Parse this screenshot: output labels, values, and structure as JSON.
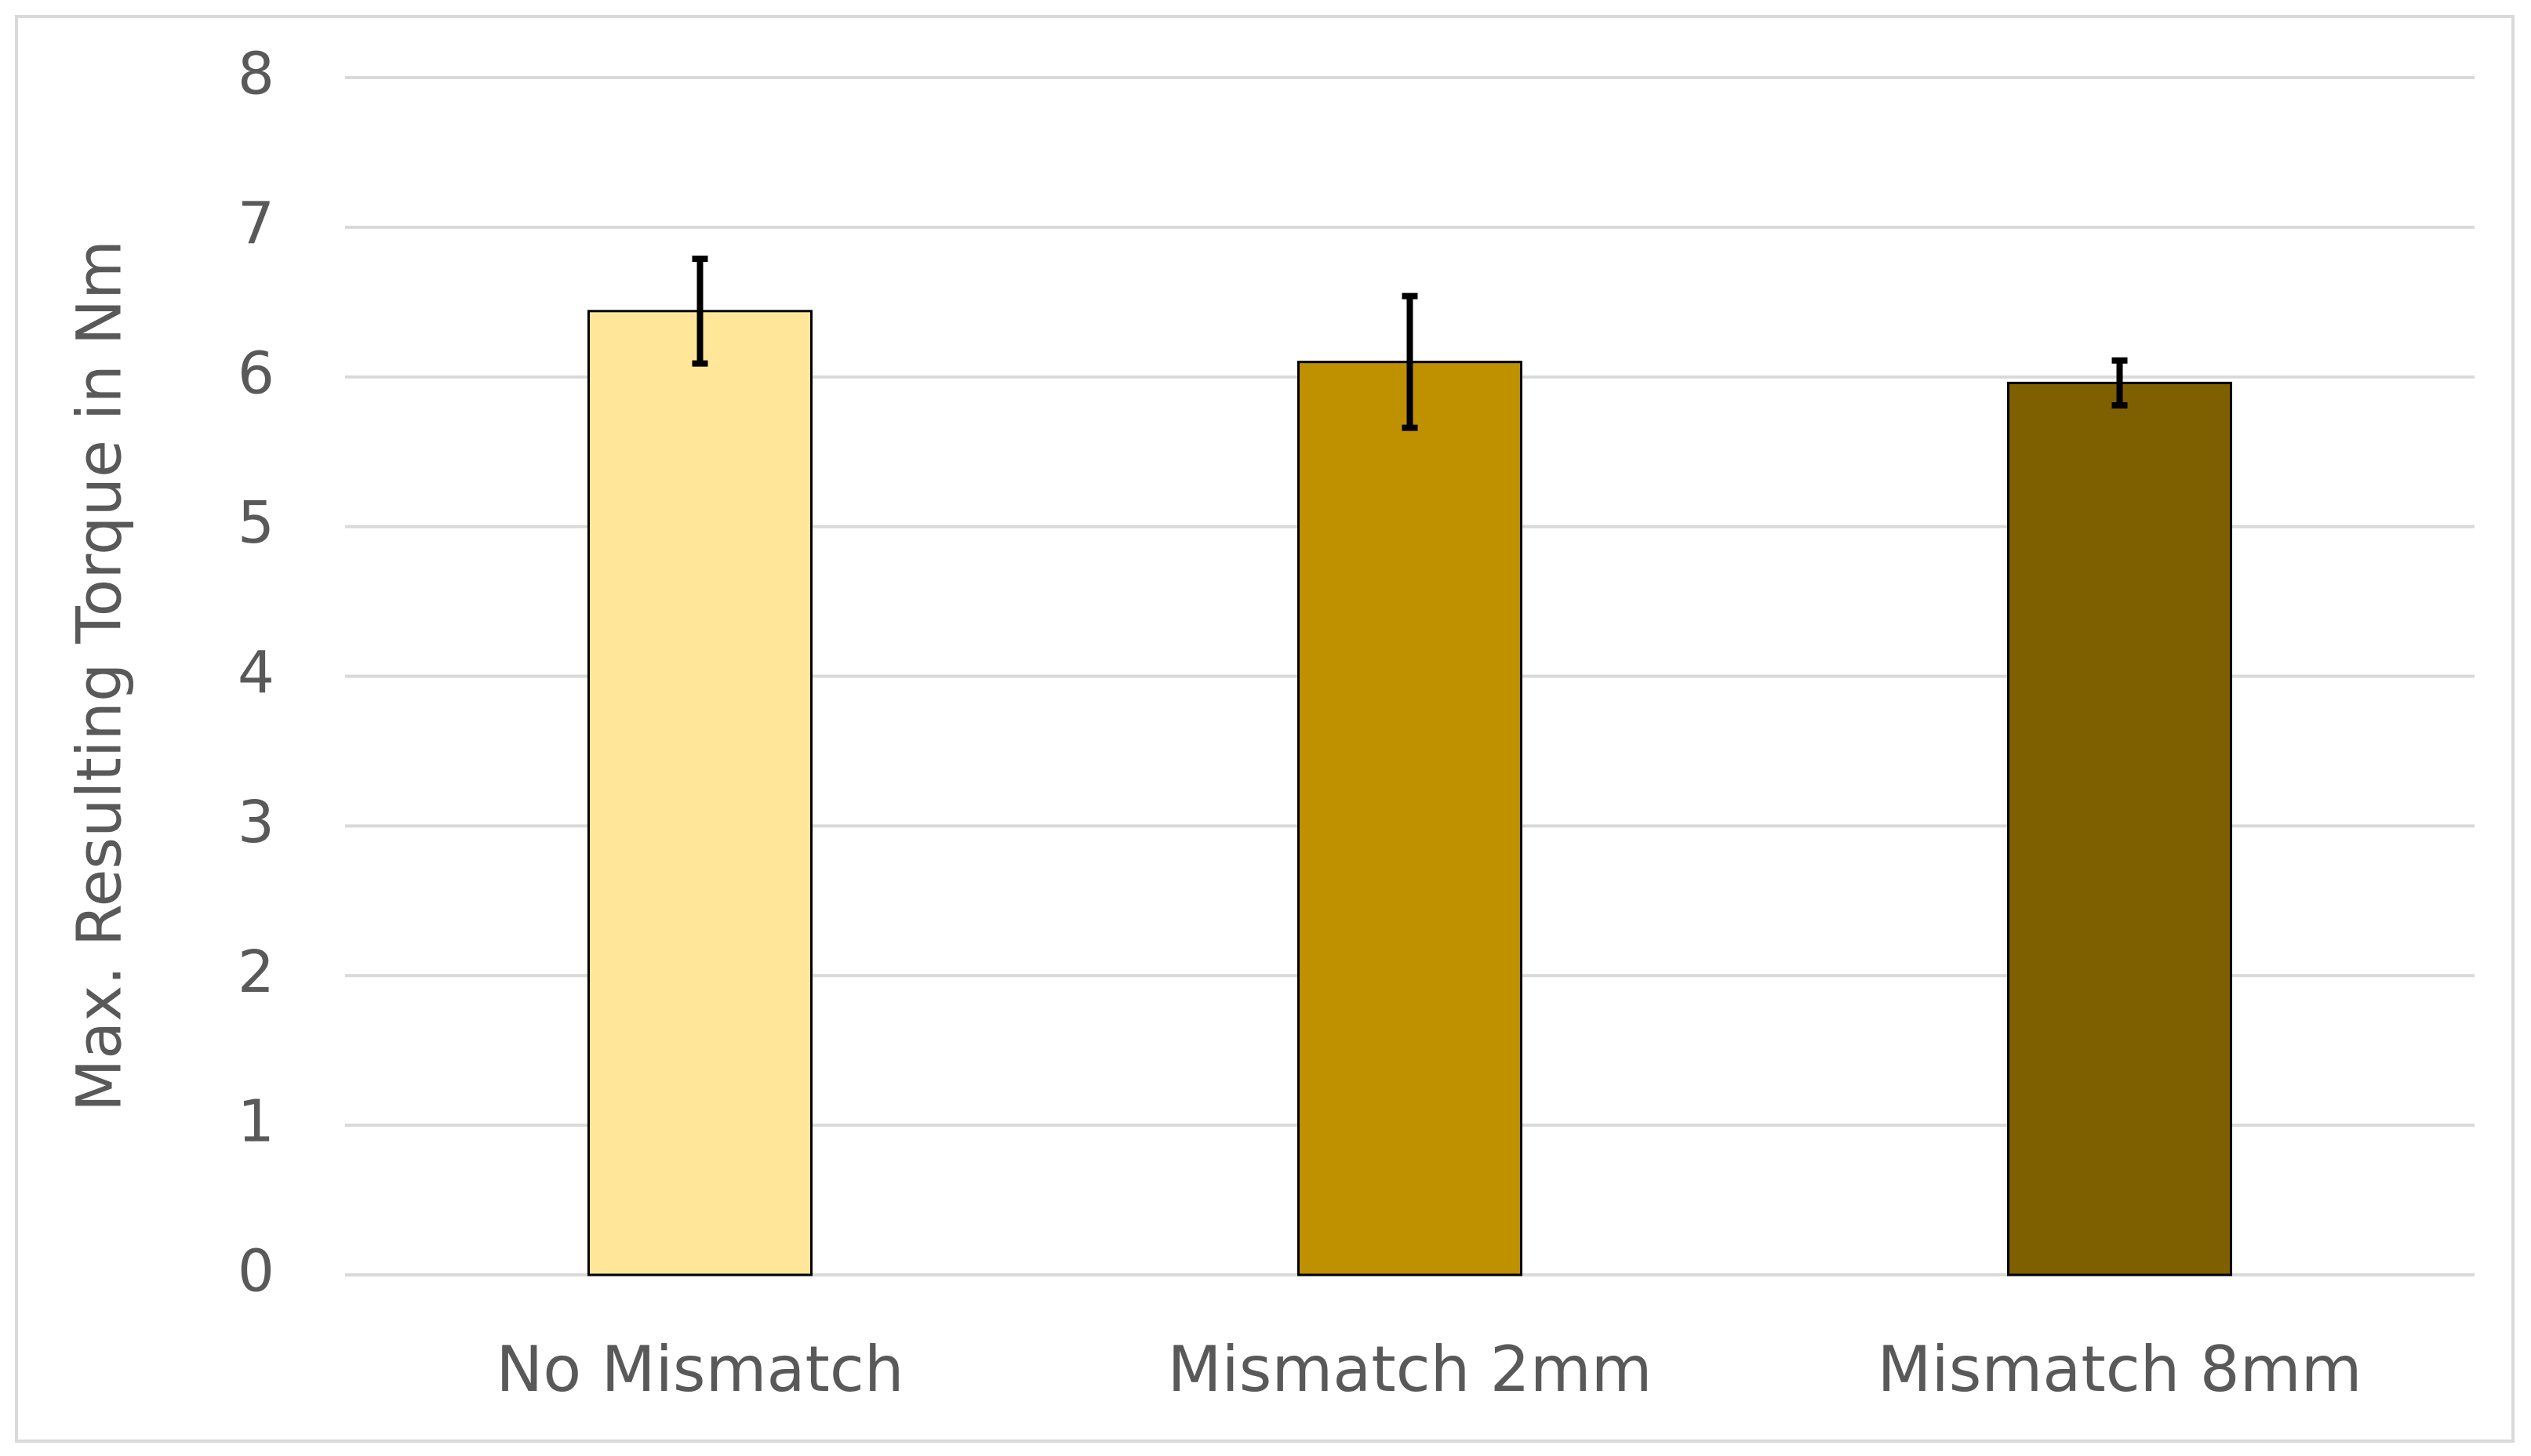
{
  "chart_data": {
    "type": "bar",
    "y_label": "Max. Resulting Torque in Nm",
    "categories": [
      "No Mismatch",
      "Mismatch 2mm",
      "Mismatch 8mm"
    ],
    "values": [
      6.44,
      6.1,
      5.96
    ],
    "errors": [
      0.35,
      0.44,
      0.15
    ],
    "colors": [
      "#ffe699",
      "#bf9000",
      "#7f6000"
    ],
    "ylim": [
      0,
      8
    ],
    "yticks": [
      0,
      1,
      2,
      3,
      4,
      5,
      6,
      7,
      8
    ],
    "grid": true
  }
}
